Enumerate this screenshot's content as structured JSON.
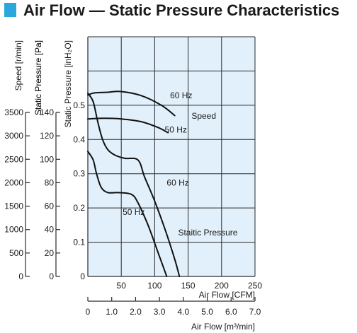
{
  "title": "Air Flow — Static Pressure Characteristics",
  "colors": {
    "accent": "#2aa8dc",
    "plot_bg": "#e1f0fb",
    "line": "#111111"
  },
  "chart_data": {
    "type": "line",
    "title": "Air Flow — Static Pressure Characteristics",
    "grid": true,
    "x_axis": {
      "label": "Air Flow [CFM]",
      "range": [
        0,
        250
      ],
      "ticks": [
        50,
        100,
        150,
        200,
        250
      ],
      "tick_labels": [
        "50",
        "100",
        "150",
        "200",
        "250"
      ]
    },
    "x_axis_secondary": {
      "label": "Air Flow [m³/min]",
      "range": [
        0,
        7.0
      ],
      "ticks": [
        0,
        1.0,
        2.0,
        3.0,
        4.0,
        5.0,
        6.0,
        7.0
      ],
      "tick_labels": [
        "0",
        "1.0",
        "2.0",
        "3.0",
        "4.0",
        "5.0",
        "6.0",
        "7.0"
      ]
    },
    "y_axis_inH2O": {
      "label": "Static Pressure [inH₂O]",
      "range": [
        0,
        0.7
      ],
      "ticks": [
        0,
        0.1,
        0.2,
        0.3,
        0.4,
        0.5
      ],
      "tick_labels": [
        "0",
        "0.1",
        "0.2",
        "0.3",
        "0.4",
        "0.5"
      ]
    },
    "y_axis_pa": {
      "label": "Static Pressure [Pa]",
      "range": [
        0,
        140
      ],
      "ticks": [
        0,
        20,
        40,
        60,
        80,
        100,
        120,
        140
      ],
      "tick_labels": [
        "0",
        "20",
        "40",
        "60",
        "80",
        "100",
        "120",
        "140"
      ]
    },
    "y_axis_speed": {
      "label": "Speed [r/min]",
      "range": [
        0,
        3500
      ],
      "ticks": [
        0,
        500,
        1000,
        1500,
        2000,
        2500,
        3000,
        3500
      ],
      "tick_labels": [
        "0",
        "500",
        "1000",
        "1500",
        "2000",
        "2500",
        "3000",
        "3500"
      ]
    },
    "series": [
      {
        "name": "60 Hz",
        "group": "Speed",
        "x": [
          0,
          10,
          30,
          50,
          80,
          110,
          130
        ],
        "y": [
          0.53,
          0.536,
          0.538,
          0.54,
          0.528,
          0.5,
          0.47
        ]
      },
      {
        "name": "50 Hz",
        "group": "Speed",
        "x": [
          0,
          25,
          50,
          80,
          105,
          120
        ],
        "y": [
          0.46,
          0.462,
          0.46,
          0.452,
          0.435,
          0.42
        ]
      },
      {
        "name": "60 Hz",
        "group": "Static Pressure",
        "x": [
          0,
          8,
          15,
          22,
          30,
          40,
          55,
          75,
          85,
          100,
          115,
          130,
          137
        ],
        "y": [
          0.535,
          0.51,
          0.45,
          0.4,
          0.37,
          0.355,
          0.345,
          0.34,
          0.29,
          0.22,
          0.14,
          0.05,
          0
        ]
      },
      {
        "name": "50 Hz",
        "group": "Static Pressure",
        "x": [
          0,
          8,
          13,
          20,
          30,
          45,
          65,
          75,
          90,
          105,
          118
        ],
        "y": [
          0.365,
          0.34,
          0.3,
          0.26,
          0.245,
          0.245,
          0.24,
          0.215,
          0.15,
          0.07,
          0
        ]
      }
    ],
    "annotations": [
      {
        "text": "60 Hz",
        "x": 123,
        "y": 0.52
      },
      {
        "text": "Speed",
        "x": 155,
        "y": 0.46
      },
      {
        "text": "50 Hz",
        "x": 115,
        "y": 0.42
      },
      {
        "text": "60 Hz",
        "x": 118,
        "y": 0.265
      },
      {
        "text": "50 Hz",
        "x": 52,
        "y": 0.18
      },
      {
        "text": "Staitic Pressure",
        "x": 135,
        "y": 0.12
      }
    ]
  }
}
